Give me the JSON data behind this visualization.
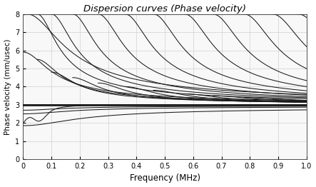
{
  "title": "Dispersion curves (Phase velocity)",
  "xlabel": "Frequency (MHz)",
  "ylabel": "Phase velocity (mm/usec)",
  "xlim": [
    0,
    1.0
  ],
  "ylim": [
    0,
    8
  ],
  "xticks": [
    0,
    0.1,
    0.2,
    0.3,
    0.4,
    0.5,
    0.6,
    0.7,
    0.8,
    0.9,
    1.0
  ],
  "yticks": [
    0,
    1,
    2,
    3,
    4,
    5,
    6,
    7,
    8
  ],
  "line_color": "#1a1a1a",
  "line_width": 0.75,
  "grid_color": "#d0d0d0",
  "bg_color": "#f8f8f8",
  "fig_bg_color": "#ffffff",
  "asymptote": 3.0
}
